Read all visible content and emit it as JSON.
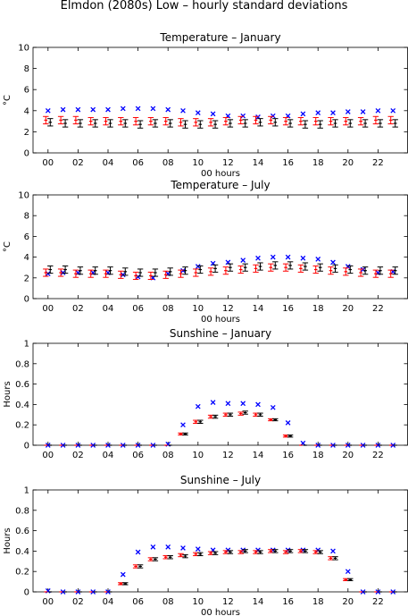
{
  "figure_title": "Elmdon (2080s) Low – hourly standard deviations",
  "colors": {
    "observed": "#0000ff",
    "black_series": "#000000",
    "red_series": "#ff0000"
  },
  "chart_data": [
    {
      "type": "scatter",
      "title": "Temperature – January",
      "xlabel": "00 hours",
      "ylabel": "°C",
      "ylim": [
        0,
        10
      ],
      "yticks": [
        "0",
        "2",
        "4",
        "6",
        "8",
        "10"
      ],
      "xticks": [
        "00",
        "02",
        "04",
        "06",
        "08",
        "10",
        "12",
        "14",
        "16",
        "18",
        "20",
        "22"
      ],
      "x": [
        0,
        1,
        2,
        3,
        4,
        5,
        6,
        7,
        8,
        9,
        10,
        11,
        12,
        13,
        14,
        15,
        16,
        17,
        18,
        19,
        20,
        21,
        22,
        23
      ],
      "series": [
        {
          "marker": "x",
          "color": "#0000ff",
          "values": [
            4.0,
            4.1,
            4.1,
            4.1,
            4.1,
            4.2,
            4.2,
            4.2,
            4.1,
            4.0,
            3.8,
            3.7,
            3.5,
            3.5,
            3.4,
            3.5,
            3.5,
            3.7,
            3.8,
            3.8,
            3.9,
            3.9,
            4.0,
            4.0
          ]
        },
        {
          "marker": "errorbar",
          "color": "#ff0000",
          "values": [
            3.1,
            3.1,
            3.1,
            3.0,
            3.0,
            3.0,
            3.0,
            3.0,
            3.0,
            2.9,
            2.9,
            2.9,
            3.0,
            3.1,
            3.1,
            3.1,
            3.0,
            3.0,
            3.0,
            3.0,
            3.0,
            3.0,
            3.1,
            3.1
          ],
          "spread": [
            0.35,
            0.35,
            0.35,
            0.35,
            0.35,
            0.35,
            0.35,
            0.35,
            0.35,
            0.35,
            0.35,
            0.35,
            0.35,
            0.35,
            0.35,
            0.35,
            0.35,
            0.35,
            0.35,
            0.35,
            0.35,
            0.35,
            0.35,
            0.35
          ]
        },
        {
          "marker": "errorbar",
          "color": "#000000",
          "values": [
            2.9,
            2.8,
            2.8,
            2.8,
            2.8,
            2.8,
            2.7,
            2.8,
            2.8,
            2.7,
            2.7,
            2.7,
            2.8,
            2.8,
            2.9,
            2.9,
            2.8,
            2.7,
            2.7,
            2.8,
            2.8,
            2.8,
            2.8,
            2.8
          ],
          "spread": [
            0.35,
            0.35,
            0.35,
            0.35,
            0.35,
            0.35,
            0.35,
            0.35,
            0.35,
            0.35,
            0.35,
            0.35,
            0.35,
            0.35,
            0.35,
            0.35,
            0.35,
            0.35,
            0.35,
            0.35,
            0.35,
            0.35,
            0.35,
            0.35
          ]
        }
      ]
    },
    {
      "type": "scatter",
      "title": "Temperature – July",
      "xlabel": "00 hours",
      "ylabel": "°C",
      "ylim": [
        0,
        10
      ],
      "yticks": [
        "0",
        "2",
        "4",
        "6",
        "8",
        "10"
      ],
      "xticks": [
        "00",
        "02",
        "04",
        "06",
        "08",
        "10",
        "12",
        "14",
        "16",
        "18",
        "20",
        "22"
      ],
      "x": [
        0,
        1,
        2,
        3,
        4,
        5,
        6,
        7,
        8,
        9,
        10,
        11,
        12,
        13,
        14,
        15,
        16,
        17,
        18,
        19,
        20,
        21,
        22,
        23
      ],
      "series": [
        {
          "marker": "x",
          "color": "#0000ff",
          "values": [
            2.4,
            2.5,
            2.5,
            2.5,
            2.5,
            2.3,
            2.1,
            2.0,
            2.4,
            2.7,
            3.1,
            3.4,
            3.5,
            3.7,
            3.9,
            4.0,
            4.0,
            3.9,
            3.8,
            3.5,
            3.1,
            2.8,
            2.5,
            2.6
          ]
        },
        {
          "marker": "errorbar",
          "color": "#ff0000",
          "values": [
            2.5,
            2.5,
            2.4,
            2.4,
            2.4,
            2.3,
            2.2,
            2.2,
            2.3,
            2.4,
            2.5,
            2.6,
            2.7,
            2.8,
            2.9,
            3.0,
            3.0,
            2.9,
            2.8,
            2.7,
            2.6,
            2.5,
            2.4,
            2.4
          ],
          "spread": [
            0.35,
            0.35,
            0.35,
            0.35,
            0.35,
            0.35,
            0.35,
            0.35,
            0.35,
            0.35,
            0.35,
            0.35,
            0.35,
            0.35,
            0.35,
            0.35,
            0.35,
            0.35,
            0.35,
            0.35,
            0.35,
            0.35,
            0.35,
            0.35
          ]
        },
        {
          "marker": "errorbar",
          "color": "#000000",
          "values": [
            2.8,
            2.8,
            2.7,
            2.7,
            2.7,
            2.6,
            2.5,
            2.5,
            2.6,
            2.7,
            2.8,
            2.9,
            3.0,
            3.0,
            3.1,
            3.2,
            3.2,
            3.1,
            3.0,
            2.9,
            2.8,
            2.7,
            2.7,
            2.7
          ],
          "spread": [
            0.35,
            0.35,
            0.35,
            0.35,
            0.35,
            0.35,
            0.35,
            0.35,
            0.35,
            0.35,
            0.35,
            0.35,
            0.35,
            0.35,
            0.35,
            0.35,
            0.35,
            0.35,
            0.35,
            0.35,
            0.35,
            0.35,
            0.35,
            0.35
          ]
        }
      ]
    },
    {
      "type": "scatter",
      "title": "Sunshine – January",
      "xlabel": "",
      "ylabel": "Hours",
      "ylim": [
        0,
        1
      ],
      "yticks": [
        "0",
        "0.2",
        "0.4",
        "0.6",
        "0.8",
        "1"
      ],
      "xticks": [
        "00",
        "02",
        "04",
        "06",
        "08",
        "10",
        "12",
        "14",
        "16",
        "18",
        "20",
        "22"
      ],
      "x": [
        0,
        1,
        2,
        3,
        4,
        5,
        6,
        7,
        8,
        9,
        10,
        11,
        12,
        13,
        14,
        15,
        16,
        17,
        18,
        19,
        20,
        21,
        22,
        23
      ],
      "series": [
        {
          "marker": "x",
          "color": "#0000ff",
          "values": [
            0,
            0,
            0,
            0,
            0,
            0,
            0,
            0,
            0.01,
            0.2,
            0.38,
            0.42,
            0.41,
            0.41,
            0.4,
            0.37,
            0.22,
            0.02,
            0,
            0,
            0,
            0,
            0,
            0
          ]
        },
        {
          "marker": "errorbar",
          "color": "#ff0000",
          "values": [
            0,
            0,
            0,
            0,
            0,
            0,
            0,
            0,
            0,
            0.11,
            0.23,
            0.28,
            0.3,
            0.31,
            0.3,
            0.25,
            0.09,
            0,
            0,
            0,
            0,
            0,
            0,
            0
          ],
          "spread": [
            0,
            0,
            0,
            0,
            0,
            0,
            0,
            0,
            0,
            0.01,
            0.015,
            0.015,
            0.015,
            0.015,
            0.015,
            0.01,
            0.01,
            0,
            0,
            0,
            0,
            0,
            0,
            0
          ]
        },
        {
          "marker": "errorbar",
          "color": "#000000",
          "values": [
            0,
            0,
            0,
            0,
            0,
            0,
            0,
            0,
            0,
            0.11,
            0.23,
            0.28,
            0.3,
            0.32,
            0.3,
            0.25,
            0.09,
            0,
            0,
            0,
            0,
            0,
            0,
            0
          ],
          "spread": [
            0,
            0,
            0,
            0,
            0,
            0,
            0,
            0,
            0,
            0.01,
            0.015,
            0.015,
            0.015,
            0.015,
            0.015,
            0.01,
            0.01,
            0,
            0,
            0,
            0,
            0,
            0,
            0
          ]
        }
      ]
    },
    {
      "type": "scatter",
      "title": "Sunshine – July",
      "xlabel": "00 hours",
      "ylabel": "Hours",
      "ylim": [
        0,
        1
      ],
      "yticks": [
        "0",
        "0.2",
        "0.4",
        "0.6",
        "0.8",
        "1"
      ],
      "xticks": [
        "00",
        "02",
        "04",
        "06",
        "08",
        "10",
        "12",
        "14",
        "16",
        "18",
        "20",
        "22"
      ],
      "x": [
        0,
        1,
        2,
        3,
        4,
        5,
        6,
        7,
        8,
        9,
        10,
        11,
        12,
        13,
        14,
        15,
        16,
        17,
        18,
        19,
        20,
        21,
        22,
        23
      ],
      "series": [
        {
          "marker": "x",
          "color": "#0000ff",
          "values": [
            0.01,
            0,
            0,
            0,
            0,
            0.17,
            0.39,
            0.44,
            0.44,
            0.43,
            0.42,
            0.41,
            0.41,
            0.41,
            0.41,
            0.41,
            0.41,
            0.41,
            0.41,
            0.4,
            0.2,
            0,
            0,
            0
          ]
        },
        {
          "marker": "errorbar",
          "color": "#ff0000",
          "values": [
            0,
            0,
            0,
            0,
            0,
            0.08,
            0.25,
            0.32,
            0.34,
            0.36,
            0.37,
            0.38,
            0.39,
            0.39,
            0.39,
            0.4,
            0.39,
            0.4,
            0.39,
            0.33,
            0.12,
            0,
            0,
            0
          ],
          "spread": [
            0,
            0,
            0,
            0,
            0,
            0.01,
            0.015,
            0.015,
            0.015,
            0.015,
            0.015,
            0.015,
            0.015,
            0.015,
            0.015,
            0.015,
            0.015,
            0.015,
            0.015,
            0.015,
            0.01,
            0,
            0,
            0
          ]
        },
        {
          "marker": "errorbar",
          "color": "#000000",
          "values": [
            0,
            0,
            0,
            0,
            0,
            0.08,
            0.25,
            0.32,
            0.34,
            0.35,
            0.37,
            0.38,
            0.39,
            0.4,
            0.39,
            0.4,
            0.4,
            0.4,
            0.39,
            0.33,
            0.12,
            0,
            0,
            0
          ],
          "spread": [
            0,
            0,
            0,
            0,
            0,
            0.01,
            0.015,
            0.015,
            0.015,
            0.015,
            0.015,
            0.015,
            0.015,
            0.015,
            0.015,
            0.015,
            0.015,
            0.015,
            0.015,
            0.015,
            0.01,
            0,
            0,
            0
          ]
        }
      ]
    }
  ]
}
